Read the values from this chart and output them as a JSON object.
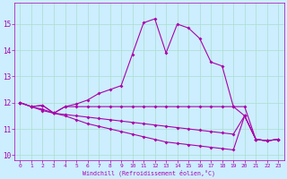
{
  "xlabel": "Windchill (Refroidissement éolien,°C)",
  "background_color": "#cceeff",
  "grid_color": "#aaddcc",
  "line_color": "#aa00aa",
  "xlim": [
    -0.5,
    23.5
  ],
  "ylim": [
    9.8,
    15.8
  ],
  "yticks": [
    10,
    11,
    12,
    13,
    14,
    15
  ],
  "xticks": [
    0,
    1,
    2,
    3,
    4,
    5,
    6,
    7,
    8,
    9,
    10,
    11,
    12,
    13,
    14,
    15,
    16,
    17,
    18,
    19,
    20,
    21,
    22,
    23
  ],
  "line1_x": [
    0,
    1,
    2,
    3,
    4,
    5,
    6,
    7,
    8,
    9,
    10,
    11,
    12,
    13,
    14,
    15,
    16,
    17,
    18,
    19,
    20,
    21,
    22,
    23
  ],
  "line1_y": [
    12.0,
    11.85,
    11.9,
    11.6,
    11.85,
    11.95,
    12.1,
    12.35,
    12.5,
    12.65,
    13.85,
    15.05,
    15.2,
    13.9,
    15.0,
    14.85,
    14.45,
    13.55,
    13.4,
    11.85,
    11.5,
    10.6,
    10.55,
    10.6
  ],
  "line2_x": [
    0,
    1,
    2,
    3,
    4,
    5,
    6,
    7,
    8,
    9,
    10,
    11,
    12,
    13,
    14,
    15,
    16,
    17,
    18,
    19,
    20,
    21,
    22,
    23
  ],
  "line2_y": [
    12.0,
    11.85,
    11.9,
    11.6,
    11.85,
    11.85,
    11.85,
    11.85,
    11.85,
    11.85,
    11.85,
    11.85,
    11.85,
    11.85,
    11.85,
    11.85,
    11.85,
    11.85,
    11.85,
    11.85,
    11.85,
    10.6,
    10.55,
    10.6
  ],
  "line3_x": [
    0,
    1,
    2,
    3,
    4,
    5,
    6,
    7,
    8,
    9,
    10,
    11,
    12,
    13,
    14,
    15,
    16,
    17,
    18,
    19,
    20,
    21,
    22,
    23
  ],
  "line3_y": [
    12.0,
    11.85,
    11.75,
    11.6,
    11.55,
    11.5,
    11.45,
    11.4,
    11.35,
    11.3,
    11.25,
    11.2,
    11.15,
    11.1,
    11.05,
    11.0,
    10.95,
    10.9,
    10.85,
    10.8,
    11.5,
    10.6,
    10.55,
    10.6
  ],
  "line4_x": [
    0,
    1,
    2,
    3,
    4,
    5,
    6,
    7,
    8,
    9,
    10,
    11,
    12,
    13,
    14,
    15,
    16,
    17,
    18,
    19,
    20,
    21,
    22,
    23
  ],
  "line4_y": [
    12.0,
    11.85,
    11.7,
    11.6,
    11.5,
    11.35,
    11.2,
    11.1,
    11.0,
    10.9,
    10.8,
    10.7,
    10.6,
    10.5,
    10.45,
    10.4,
    10.35,
    10.3,
    10.25,
    10.2,
    11.5,
    10.6,
    10.55,
    10.6
  ]
}
